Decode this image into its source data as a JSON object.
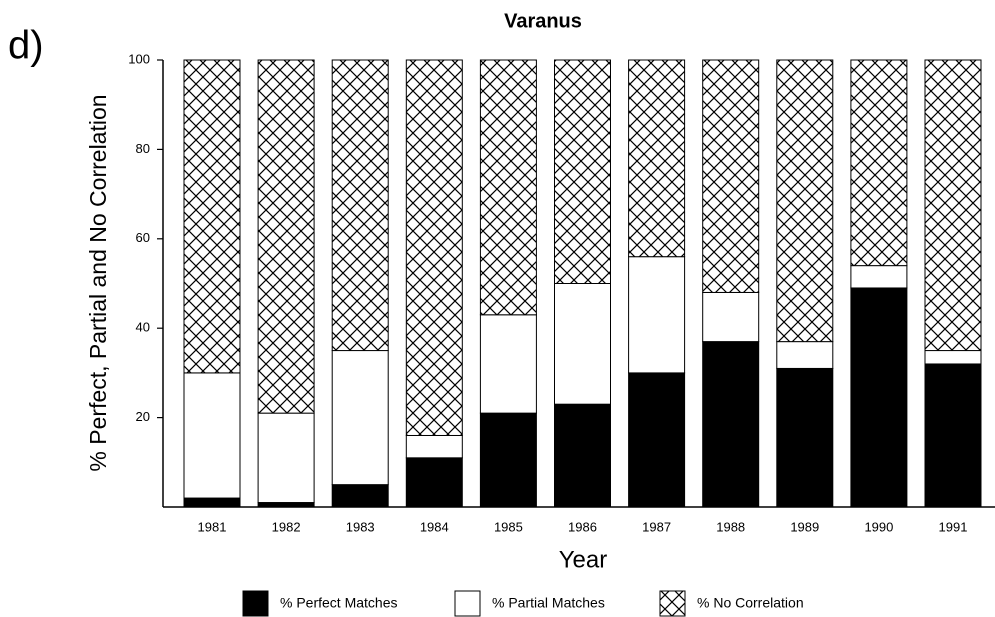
{
  "chart_data": {
    "type": "stacked_bar",
    "title": "Varanus",
    "annotation": "d)",
    "x_label": "Year",
    "y_label": "% Perfect, Partial and No Correlation",
    "categories": [
      "1981",
      "1982",
      "1983",
      "1984",
      "1985",
      "1986",
      "1987",
      "1988",
      "1989",
      "1990",
      "1991"
    ],
    "series": [
      {
        "name": "% Perfect Matches",
        "color": "#000000",
        "hatch": false,
        "values": [
          2,
          1,
          5,
          11,
          21,
          23,
          30,
          37,
          31,
          49,
          32
        ]
      },
      {
        "name": "% Partial Matches",
        "color": "#ffffff",
        "hatch": false,
        "values": [
          28,
          20,
          30,
          5,
          22,
          27,
          26,
          11,
          6,
          5,
          3
        ]
      },
      {
        "name": "% No Correlation",
        "color": "#000000",
        "hatch": true,
        "values": [
          70,
          79,
          65,
          84,
          57,
          50,
          44,
          52,
          63,
          46,
          65
        ]
      }
    ],
    "ylim": [
      0,
      100
    ],
    "yticks": [
      20,
      40,
      60,
      80,
      100
    ],
    "legend": "bottom"
  }
}
